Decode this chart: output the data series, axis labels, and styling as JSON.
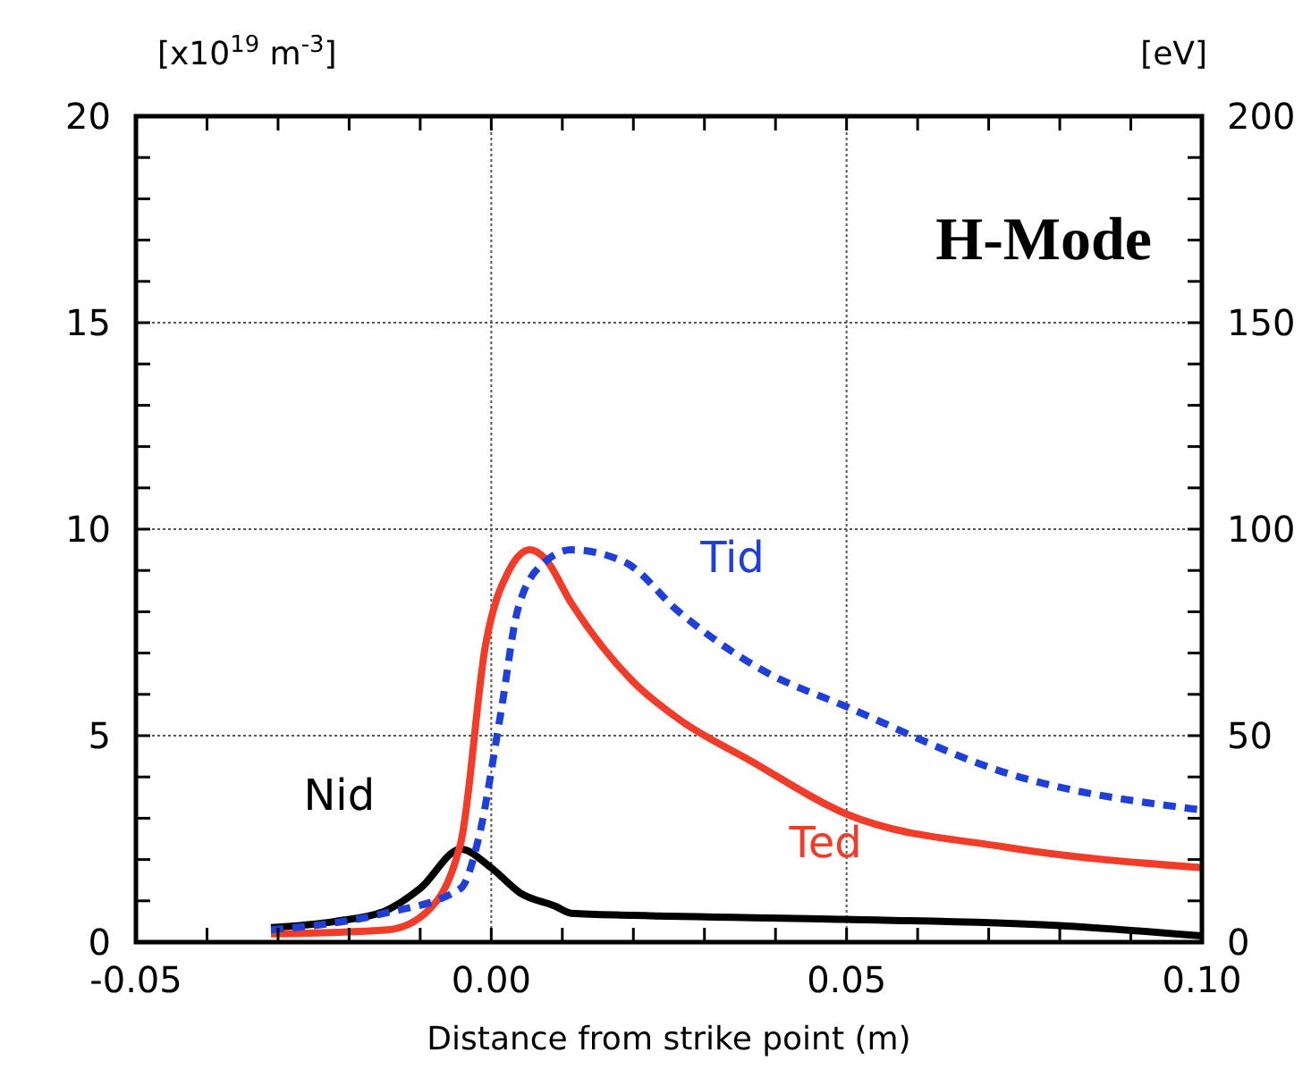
{
  "chart_data": {
    "type": "line",
    "xlabel": "Distance from strike point (m)",
    "ylabel": "[x10$^{19}$ m$^{-3}$]",
    "y2label": "[eV]",
    "annotations": [
      "H-Mode"
    ],
    "xlim": [
      -0.05,
      0.1
    ],
    "ylim": [
      0,
      20
    ],
    "y2lim": [
      0,
      200
    ],
    "xticks": [
      {
        "value": -0.05,
        "label": "-0.05"
      },
      {
        "value": -0.04,
        "label": null
      },
      {
        "value": -0.03,
        "label": null
      },
      {
        "value": -0.02,
        "label": null
      },
      {
        "value": -0.01,
        "label": null
      },
      {
        "value": 0,
        "label": "0.00"
      },
      {
        "value": 0.01,
        "label": null
      },
      {
        "value": 0.02,
        "label": null
      },
      {
        "value": 0.03,
        "label": null
      },
      {
        "value": 0.04,
        "label": null
      },
      {
        "value": 0.05,
        "label": "0.05"
      },
      {
        "value": 0.06,
        "label": null
      },
      {
        "value": 0.07,
        "label": null
      },
      {
        "value": 0.08,
        "label": null
      },
      {
        "value": 0.09,
        "label": null
      },
      {
        "value": 0.1,
        "label": "0.10"
      }
    ],
    "yticks": [
      0,
      {
        "value": 1,
        "label": null
      },
      {
        "value": 2,
        "label": null
      },
      {
        "value": 3,
        "label": null
      },
      {
        "value": 4,
        "label": null
      },
      5,
      {
        "value": 6,
        "label": null
      },
      {
        "value": 7,
        "label": null
      },
      {
        "value": 8,
        "label": null
      },
      {
        "value": 9,
        "label": null
      },
      10,
      {
        "value": 11,
        "label": null
      },
      {
        "value": 12,
        "label": null
      },
      {
        "value": 13,
        "label": null
      },
      {
        "value": 14,
        "label": null
      },
      15,
      {
        "value": 16,
        "label": null
      },
      {
        "value": 17,
        "label": null
      },
      {
        "value": 18,
        "label": null
      },
      {
        "value": 19,
        "label": null
      },
      20
    ],
    "y2ticks": [
      0,
      {
        "value": 10,
        "label": null
      },
      {
        "value": 20,
        "label": null
      },
      {
        "value": 30,
        "label": null
      },
      {
        "value": 40,
        "label": null
      },
      50,
      {
        "value": 60,
        "label": null
      },
      {
        "value": 70,
        "label": null
      },
      {
        "value": 80,
        "label": null
      },
      {
        "value": 90,
        "label": null
      },
      100,
      {
        "value": 110,
        "label": null
      },
      {
        "value": 120,
        "label": null
      },
      {
        "value": 130,
        "label": null
      },
      {
        "value": 140,
        "label": null
      },
      150,
      {
        "value": 160,
        "label": null
      },
      {
        "value": 170,
        "label": null
      },
      {
        "value": 180,
        "label": null
      },
      {
        "value": 190,
        "label": null
      },
      200
    ],
    "grid": true,
    "marker": "none",
    "series": [
      {
        "name": "Nid",
        "color": "#000000",
        "line_style": "solid",
        "x": [
          -0.031,
          -0.022,
          -0.015,
          -0.01,
          -0.0043,
          0.0,
          0.004,
          0.009,
          0.0113,
          0.02,
          0.05,
          0.08,
          0.1
        ],
        "values": [
          0.35,
          0.5,
          0.75,
          1.3,
          2.25,
          1.8,
          1.2,
          0.87,
          0.7,
          0.65,
          0.55,
          0.4,
          0.15
        ]
      },
      {
        "name": "Ted",
        "color": "#f03c28",
        "line_style": "solid",
        "axis": "y2",
        "x": [
          -0.031,
          -0.0146,
          -0.0093,
          -0.0043,
          -0.0008,
          0.0025,
          0.0055,
          0.0075,
          0.0113,
          0.02,
          0.0264,
          0.0364,
          0.05,
          0.0724,
          0.1
        ],
        "values": [
          2,
          3,
          7,
          24,
          72,
          90,
          95,
          93,
          82,
          63,
          54,
          44,
          31,
          23,
          18
        ]
      },
      {
        "name": "Tid",
        "color": "#1e3fd8",
        "line_style": "dashed",
        "axis": "y2",
        "x": [
          -0.031,
          -0.015,
          -0.0043,
          -0.0018,
          0.0013,
          0.0038,
          0.0075,
          0.0113,
          0.0188,
          0.0264,
          0.038,
          0.05,
          0.0724,
          0.1
        ],
        "values": [
          3,
          7,
          13,
          25,
          55,
          81,
          92,
          95,
          92,
          80,
          66,
          57,
          41,
          32
        ]
      }
    ]
  }
}
